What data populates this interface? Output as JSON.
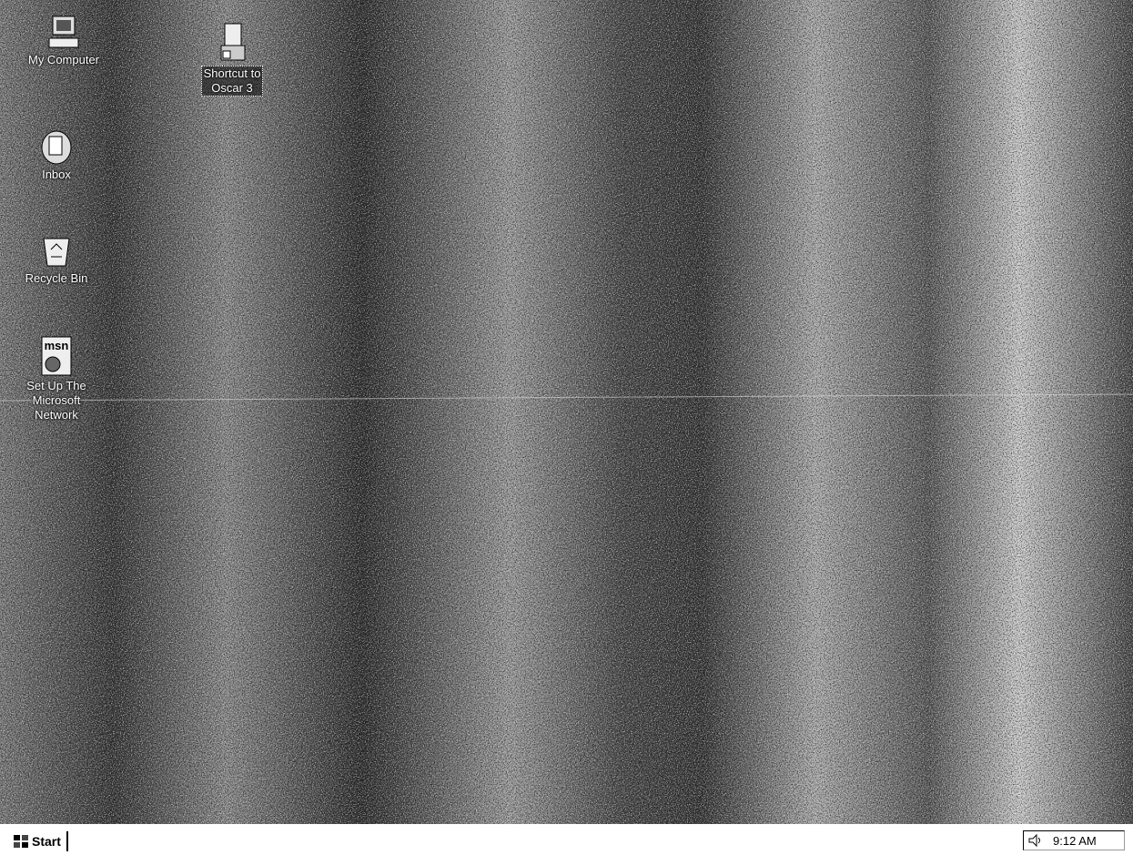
{
  "desktop": {
    "icons": [
      {
        "label": [
          "My Computer"
        ]
      },
      {
        "label": [
          "Shortcut to",
          "Oscar 3"
        ]
      },
      {
        "label": [
          "Inbox"
        ]
      },
      {
        "label": [
          "Recycle Bin"
        ]
      },
      {
        "label": [
          "Set Up The",
          "Microsoft",
          "Network"
        ]
      }
    ]
  },
  "taskbar": {
    "start": "Start",
    "clock": "9:12 AM"
  }
}
